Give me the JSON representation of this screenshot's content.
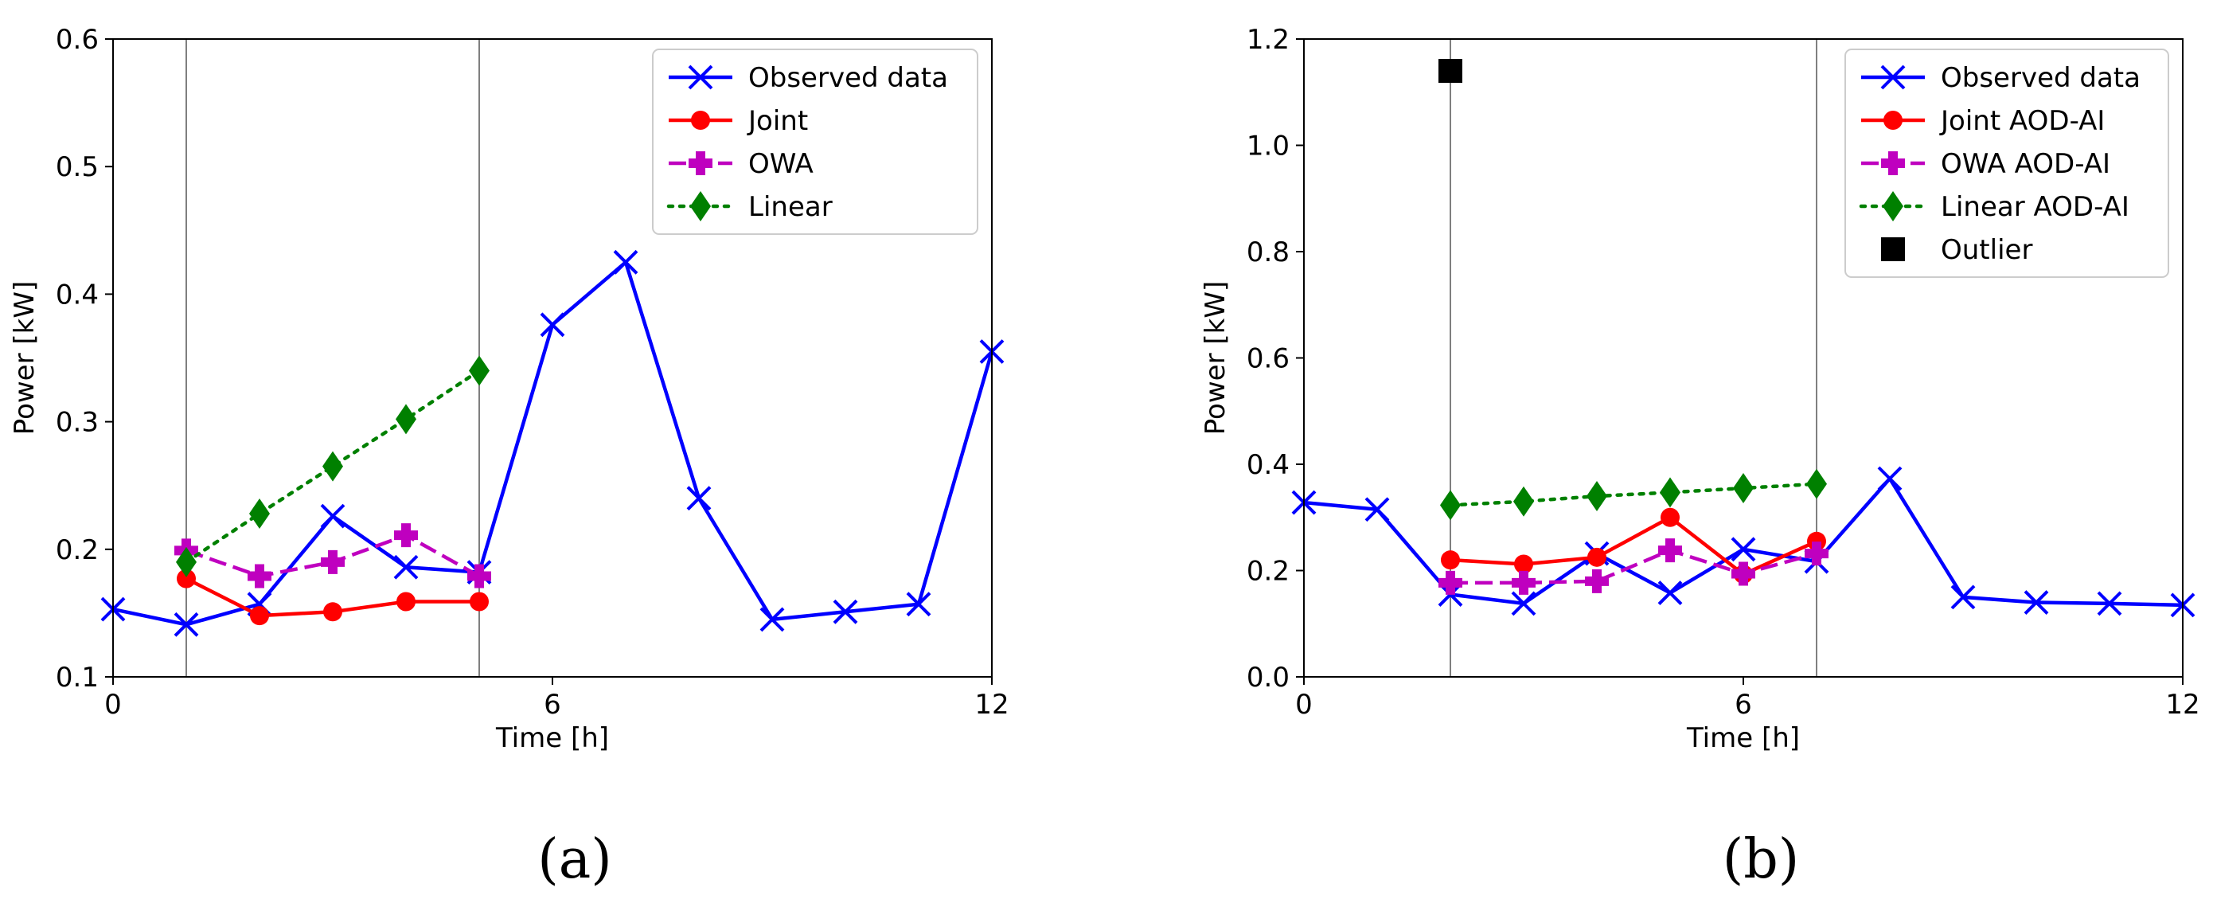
{
  "chart_data": [
    {
      "type": "line",
      "xlabel": "Time [h]",
      "ylabel": "Power [kW]",
      "xlim": [
        0,
        12
      ],
      "ylim": [
        0.1,
        0.6
      ],
      "xticks": [
        "0",
        "6",
        "12"
      ],
      "xtick_values": [
        0,
        6,
        12
      ],
      "yticks": [
        "0.1",
        "0.2",
        "0.3",
        "0.4",
        "0.5",
        "0.6"
      ],
      "ytick_values": [
        0.1,
        0.2,
        0.3,
        0.4,
        0.5,
        0.6
      ],
      "vlines": [
        1,
        5
      ],
      "legend_position": "top-right",
      "series": [
        {
          "name": "Observed data",
          "marker": "x",
          "style": "solid",
          "color": "#0000ff",
          "x": [
            0,
            1,
            2,
            3,
            4,
            5,
            6,
            7,
            8,
            9,
            10,
            11,
            12
          ],
          "y": [
            0.153,
            0.141,
            0.157,
            0.226,
            0.186,
            0.182,
            0.376,
            0.425,
            0.24,
            0.145,
            0.151,
            0.157,
            0.355
          ]
        },
        {
          "name": "Joint",
          "marker": "circle",
          "style": "solid",
          "color": "#ff0000",
          "x": [
            1,
            2,
            3,
            4,
            5
          ],
          "y": [
            0.177,
            0.148,
            0.151,
            0.159,
            0.159
          ]
        },
        {
          "name": "OWA",
          "marker": "plus",
          "style": "dashed",
          "color": "#bf00bf",
          "x": [
            1,
            2,
            3,
            4,
            5
          ],
          "y": [
            0.199,
            0.179,
            0.19,
            0.211,
            0.179
          ]
        },
        {
          "name": "Linear",
          "marker": "diamond",
          "style": "dotted",
          "color": "#008000",
          "x": [
            1,
            2,
            3,
            4,
            5
          ],
          "y": [
            0.19,
            0.228,
            0.265,
            0.302,
            0.34
          ]
        }
      ]
    },
    {
      "type": "line",
      "xlabel": "Time [h]",
      "ylabel": "Power [kW]",
      "xlim": [
        0,
        12
      ],
      "ylim": [
        0.0,
        1.2
      ],
      "xticks": [
        "0",
        "6",
        "12"
      ],
      "xtick_values": [
        0,
        6,
        12
      ],
      "yticks": [
        "0.0",
        "0.2",
        "0.4",
        "0.6",
        "0.8",
        "1.0",
        "1.2"
      ],
      "ytick_values": [
        0.0,
        0.2,
        0.4,
        0.6,
        0.8,
        1.0,
        1.2
      ],
      "vlines": [
        2,
        7
      ],
      "legend_position": "top-right",
      "series": [
        {
          "name": "Observed data",
          "marker": "x",
          "style": "solid",
          "color": "#0000ff",
          "x": [
            0,
            1,
            2,
            3,
            4,
            5,
            6,
            7,
            8,
            9,
            10,
            11,
            12
          ],
          "y": [
            0.328,
            0.315,
            0.155,
            0.138,
            0.232,
            0.158,
            0.24,
            0.217,
            0.373,
            0.15,
            0.14,
            0.138,
            0.135
          ]
        },
        {
          "name": "Joint AOD-AI",
          "marker": "circle",
          "style": "solid",
          "color": "#ff0000",
          "x": [
            2,
            3,
            4,
            5,
            6,
            7
          ],
          "y": [
            0.22,
            0.212,
            0.225,
            0.3,
            0.193,
            0.255
          ]
        },
        {
          "name": "OWA AOD-AI",
          "marker": "plus",
          "style": "dashed",
          "color": "#bf00bf",
          "x": [
            2,
            3,
            4,
            5,
            6,
            7
          ],
          "y": [
            0.177,
            0.177,
            0.18,
            0.238,
            0.194,
            0.232
          ]
        },
        {
          "name": "Linear AOD-AI",
          "marker": "diamond",
          "style": "dotted",
          "color": "#008000",
          "x": [
            2,
            3,
            4,
            5,
            6,
            7
          ],
          "y": [
            0.323,
            0.33,
            0.34,
            0.347,
            0.355,
            0.363
          ]
        },
        {
          "name": "Outlier",
          "marker": "square",
          "style": "none",
          "color": "#000000",
          "x": [
            2
          ],
          "y": [
            1.14
          ]
        }
      ]
    }
  ],
  "captions": {
    "a": "(a)",
    "b": "(b)"
  }
}
